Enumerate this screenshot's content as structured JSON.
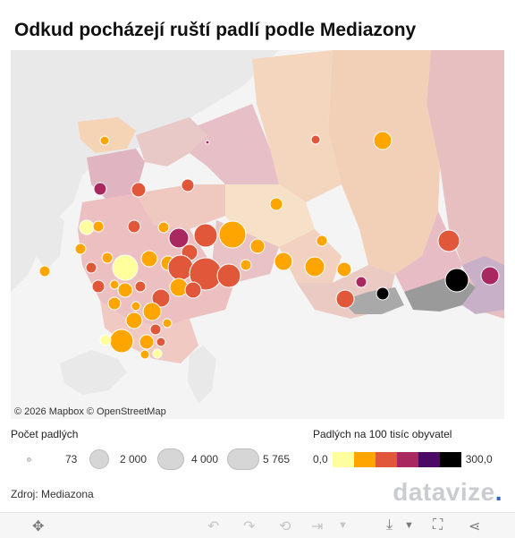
{
  "title": "Odkud pocházejí ruští padlí podle Mediazony",
  "attribution": "© 2026 Mapbox © OpenStreetMap",
  "legend_size": {
    "title": "Počet padlých",
    "items": [
      "73",
      "2 000",
      "4 000",
      "5 765"
    ]
  },
  "legend_color": {
    "title": "Padlých na 100 tisíc obyvatel",
    "min": "0,0",
    "max": "300,0",
    "colors": [
      "#ffff9e",
      "#ffa500",
      "#e0573a",
      "#a8285f",
      "#4a0a66",
      "#000000"
    ]
  },
  "source": "Zdroj: Mediazona",
  "brand": {
    "text": "datavize",
    "dot": "."
  },
  "map": {
    "land_color": "#f4f4f4",
    "water_color": "#e9e9ea"
  },
  "toolbar": {
    "move_icon": "✥",
    "undo_icon": "↶",
    "redo_icon": "↷",
    "revert_icon": "⟲",
    "pause_icon": "⇥",
    "download_icon": "⤓",
    "fullscreen_icon": "⛶",
    "share_icon": "⋖"
  }
}
